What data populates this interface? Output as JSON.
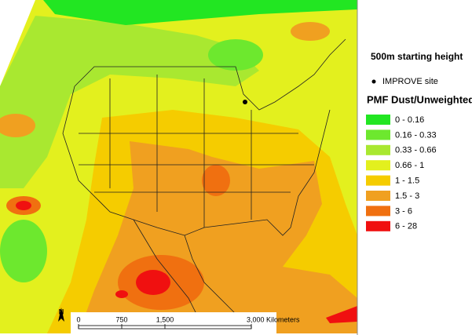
{
  "title": "500m starting height",
  "site_legend": {
    "label": "IMPROVE site"
  },
  "legend": {
    "title": "PMF Dust/Unweighted",
    "classes": [
      {
        "label": "0 - 0.16",
        "color": "#22e622"
      },
      {
        "label": "0.16 - 0.33",
        "color": "#6de82e"
      },
      {
        "label": "0.33 - 0.66",
        "color": "#a9e830"
      },
      {
        "label": "0.66 - 1",
        "color": "#e3f01e"
      },
      {
        "label": "1 - 1.5",
        "color": "#f5cc00"
      },
      {
        "label": "1.5 - 3",
        "color": "#f0a020"
      },
      {
        "label": "3 - 6",
        "color": "#f07010"
      },
      {
        "label": "6 - 28",
        "color": "#f01010"
      }
    ]
  },
  "scale_bar": {
    "labels": [
      "0",
      "750",
      "1,500",
      "3,000 Kilometers"
    ]
  },
  "north_arrow": {
    "label": "N"
  }
}
